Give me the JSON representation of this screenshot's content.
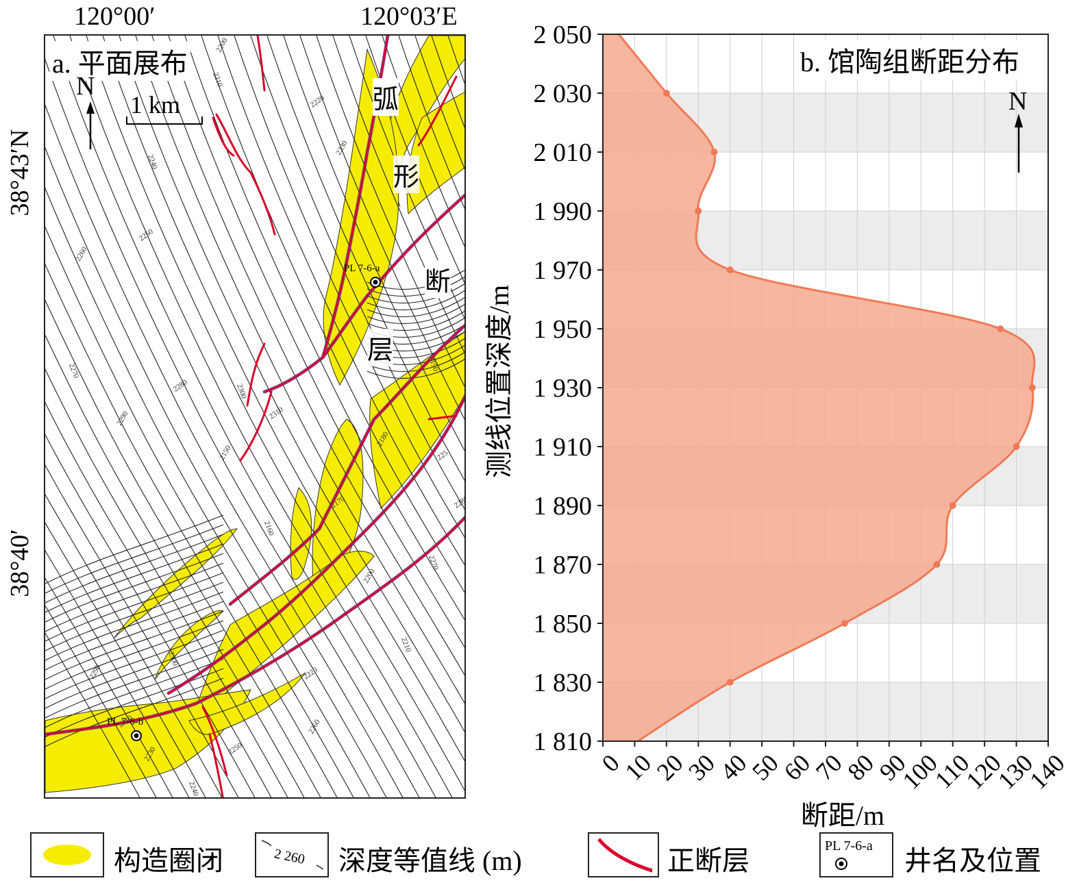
{
  "panel_a": {
    "title": "a. 平面展布",
    "lon_left": "120°00′",
    "lon_right": "120°03′E",
    "lat_top": "38°43′N",
    "lat_bottom": "38°40′",
    "north": "N",
    "scale_label": "1 km",
    "fault_label_chars": [
      "弧",
      "形",
      "断",
      "层"
    ],
    "well_a": "PL 7-6-a",
    "well_b": "PL 7-6-b",
    "contour_labels": [
      "2200",
      "2210",
      "2220",
      "2230",
      "2240",
      "2250",
      "2260",
      "2270",
      "2280",
      "2290",
      "2300",
      "2310",
      "2150",
      "2160",
      "2170",
      "2180",
      "2190",
      "225"
    ],
    "colors": {
      "closure": "#f5ec00",
      "fault": "#d9002a",
      "fault_edge": "#3a3aa8",
      "contour": "#222222"
    }
  },
  "panel_b": {
    "title": "b. 馆陶组断距分布",
    "north": "N"
  },
  "chart_data": {
    "type": "area",
    "title": "b. 馆陶组断距分布",
    "xlabel": "断距/m",
    "ylabel": "测线位置深度/m",
    "xlim": [
      0,
      140
    ],
    "ylim": [
      1810,
      2050
    ],
    "xticks": [
      0,
      10,
      20,
      30,
      40,
      50,
      60,
      70,
      80,
      90,
      100,
      110,
      120,
      130,
      140
    ],
    "yticks": [
      1810,
      1830,
      1850,
      1870,
      1890,
      1910,
      1930,
      1950,
      1970,
      1990,
      2010,
      2030,
      2050
    ],
    "xtick_labels": [
      "0",
      "10",
      "20",
      "30",
      "40",
      "50",
      "60",
      "70",
      "80",
      "90",
      "100",
      "110",
      "120",
      "130",
      "140"
    ],
    "ytick_labels": [
      "1 810",
      "1 830",
      "1 850",
      "1 870",
      "1 890",
      "1 910",
      "1 930",
      "1 950",
      "1 970",
      "1 990",
      "2 010",
      "2 030",
      "2 050"
    ],
    "grid": true,
    "series": [
      {
        "points": [
          {
            "x": 11,
            "y": 1810
          },
          {
            "x": 40,
            "y": 1830
          },
          {
            "x": 76,
            "y": 1850
          },
          {
            "x": 105,
            "y": 1870
          },
          {
            "x": 110,
            "y": 1890
          },
          {
            "x": 130,
            "y": 1910
          },
          {
            "x": 135,
            "y": 1930
          },
          {
            "x": 125,
            "y": 1950
          },
          {
            "x": 40,
            "y": 1970
          },
          {
            "x": 30,
            "y": 1990
          },
          {
            "x": 35,
            "y": 2010
          },
          {
            "x": 20,
            "y": 2030
          },
          {
            "x": 5,
            "y": 2050
          }
        ],
        "marked_depths": [
          1830,
          1850,
          1870,
          1890,
          1910,
          1930,
          1950,
          1970,
          1990,
          2010,
          2030
        ],
        "line_color": "#f07a55",
        "fill_color": "#f5a98e"
      }
    ],
    "band_color": "#ececec"
  },
  "legend": {
    "items": [
      {
        "label": "构造圈闭"
      },
      {
        "label": "深度等值线 (m)",
        "sample": "2 260"
      },
      {
        "label": "正断层"
      },
      {
        "label": "井名及位置",
        "sample": "PL 7-6-a"
      }
    ]
  }
}
